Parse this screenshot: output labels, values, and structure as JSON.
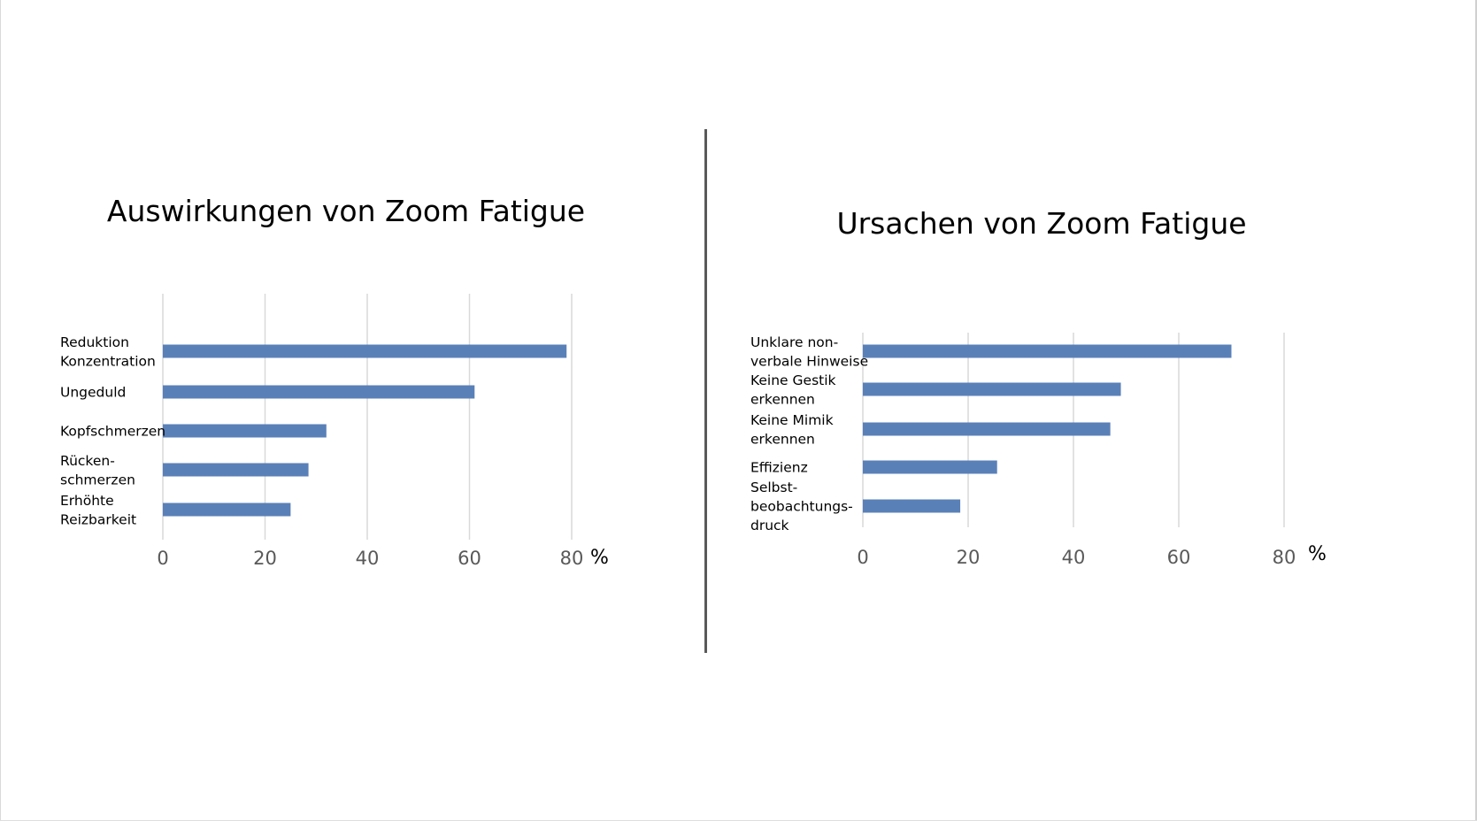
{
  "chart_data": [
    {
      "type": "bar",
      "orientation": "horizontal",
      "title": "Auswirkungen von Zoom Fatigue",
      "categories": [
        [
          "Reduktion",
          "Konzentration"
        ],
        [
          "Ungeduld"
        ],
        [
          "Kopfschmerzen"
        ],
        [
          "Rücken-",
          "schmerzen"
        ],
        [
          "Erhöhte",
          "Reizbarkeit"
        ]
      ],
      "values": [
        79,
        61,
        32,
        28.5,
        25
      ],
      "xlim": [
        0,
        80
      ],
      "xticks": [
        "0",
        "20",
        "40",
        "60",
        "80"
      ],
      "unit": "%",
      "grid": true,
      "bar_color": "#5a80b8"
    },
    {
      "type": "bar",
      "orientation": "horizontal",
      "title": "Ursachen von Zoom Fatigue",
      "categories": [
        [
          "Unklare non-",
          "verbale Hinweise"
        ],
        [
          "Keine Gestik",
          "erkennen"
        ],
        [
          "Keine Mimik",
          "erkennen"
        ],
        [
          "Effizienz"
        ],
        [
          "Selbst-",
          "beobachtungs-",
          "druck"
        ]
      ],
      "values": [
        70,
        49,
        47,
        25.5,
        18.5
      ],
      "xlim": [
        0,
        80
      ],
      "xticks": [
        "0",
        "20",
        "40",
        "60",
        "80"
      ],
      "unit": "%",
      "grid": true,
      "bar_color": "#5a80b8"
    }
  ]
}
